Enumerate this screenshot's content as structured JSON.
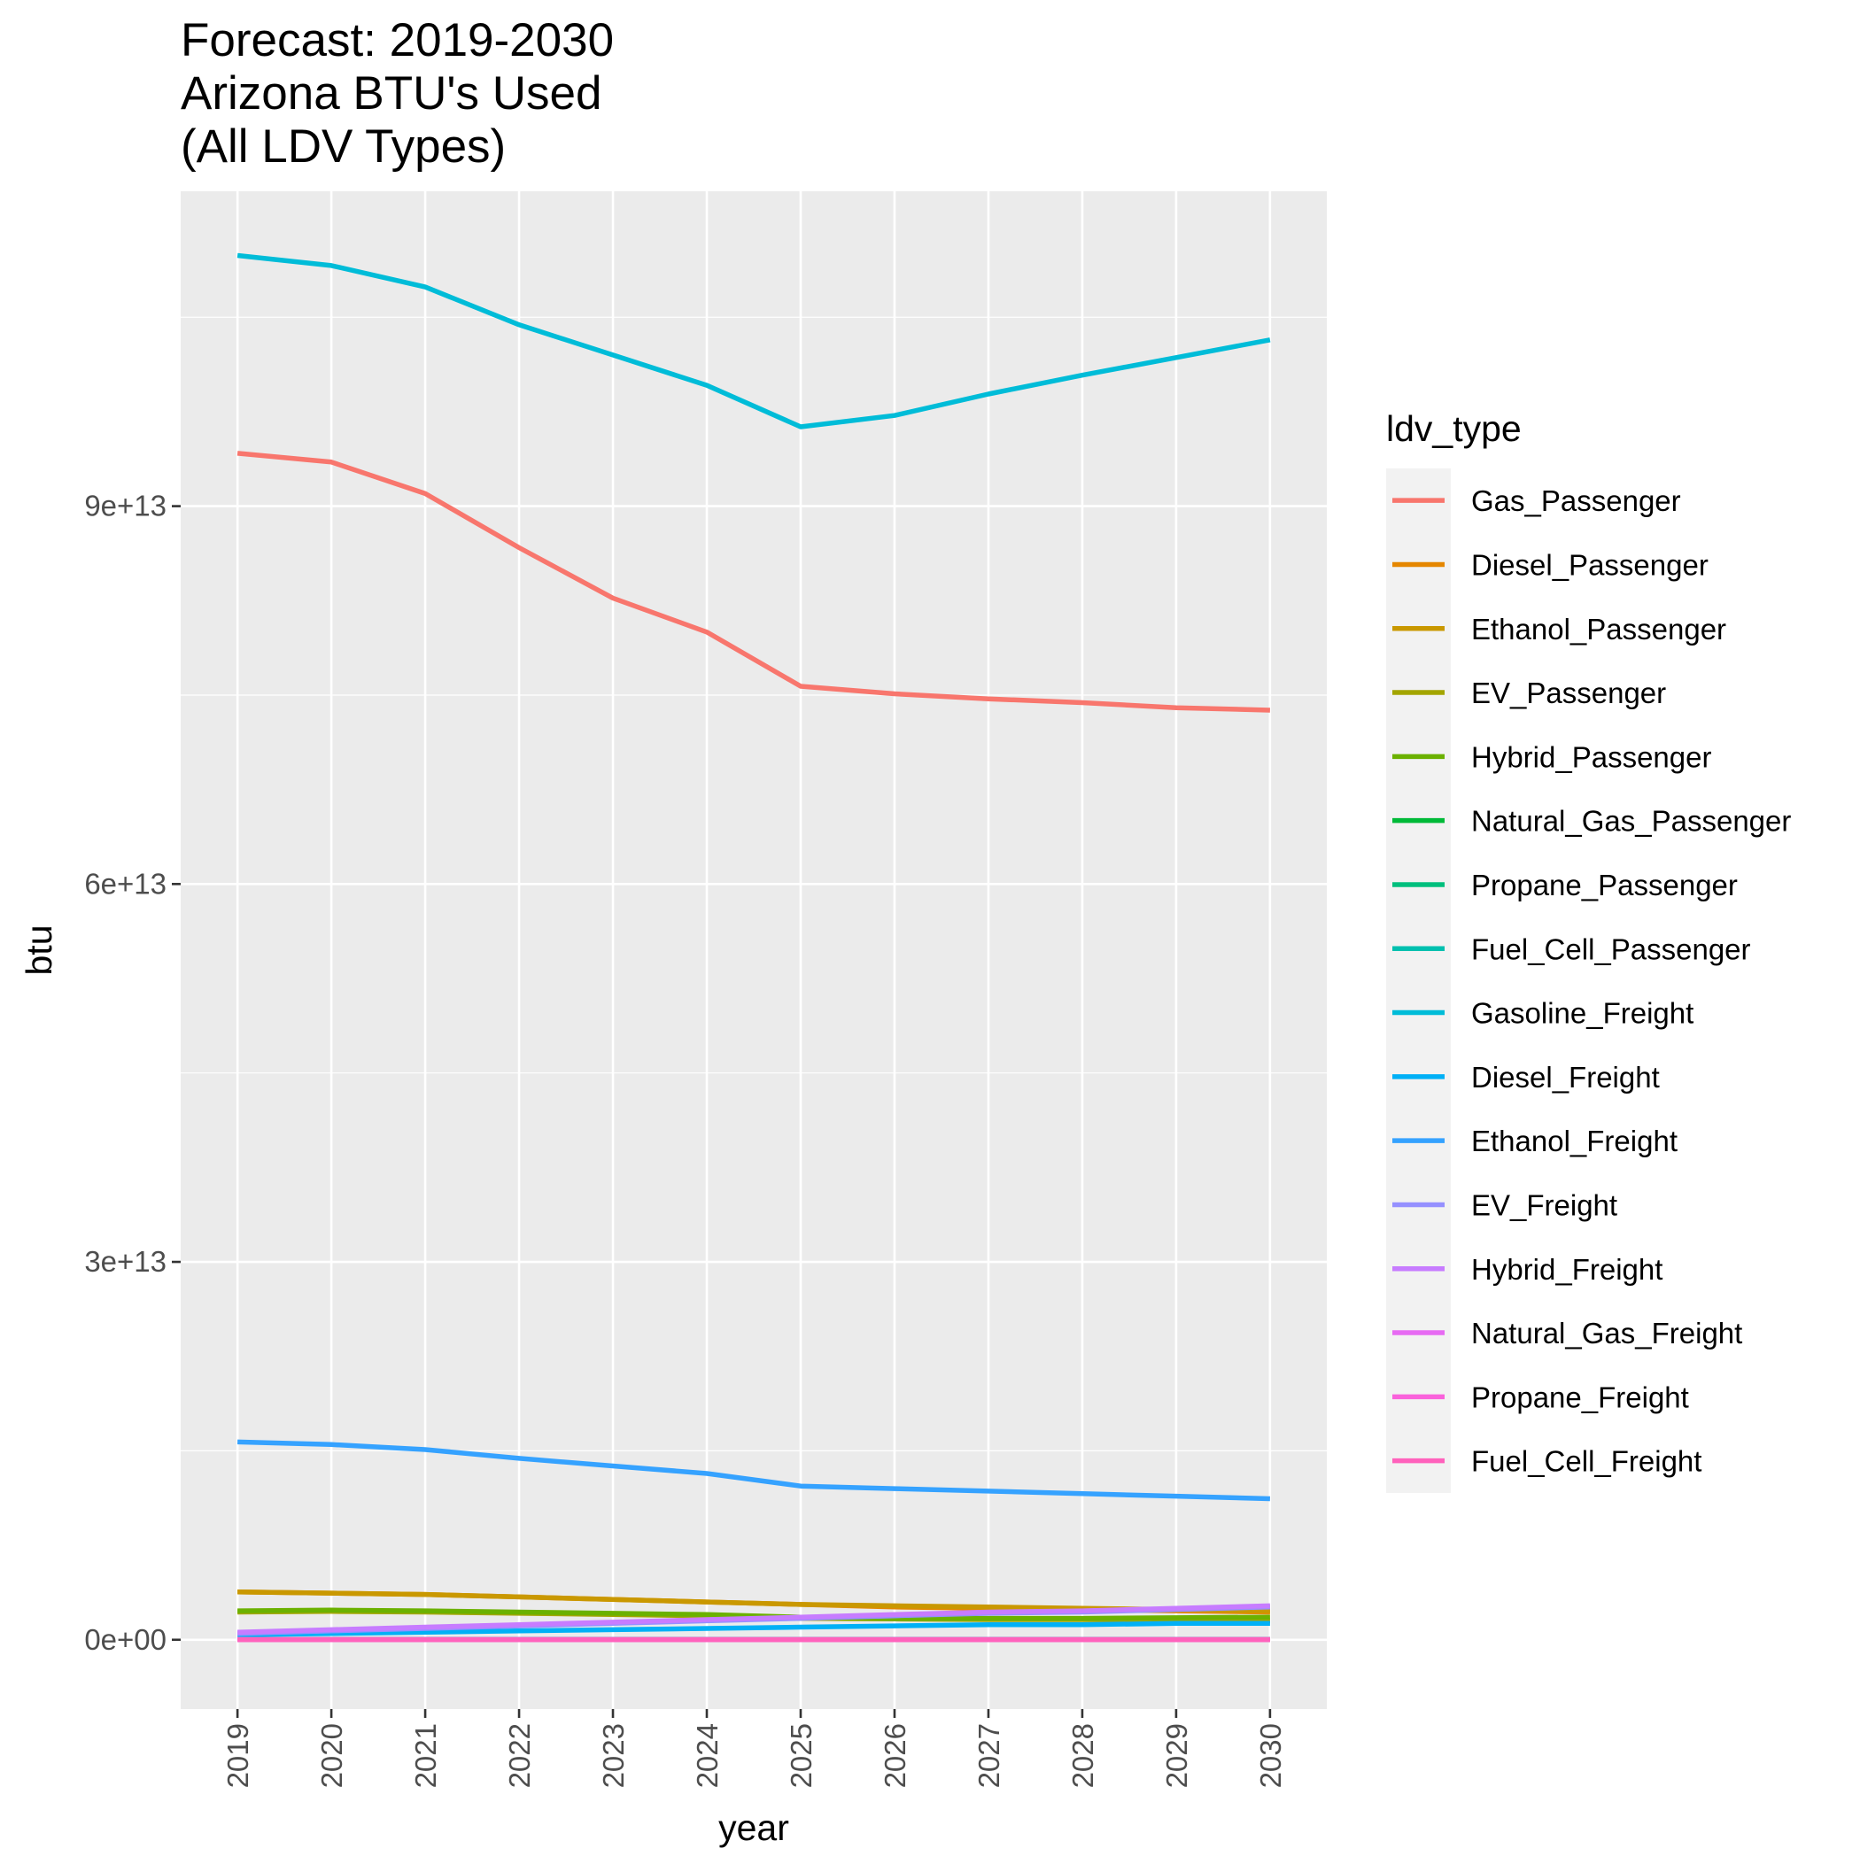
{
  "chart_data": {
    "type": "line",
    "title_lines": [
      "Forecast: 2019-2030",
      "Arizona BTU's Used",
      "(All LDV Types)"
    ],
    "xlabel": "year",
    "ylabel": "btu",
    "x": [
      2019,
      2020,
      2021,
      2022,
      2023,
      2024,
      2025,
      2026,
      2027,
      2028,
      2029,
      2030
    ],
    "x_tick_labels": [
      "2019",
      "2020",
      "2021",
      "2022",
      "2023",
      "2024",
      "2025",
      "2026",
      "2027",
      "2028",
      "2029",
      "2030"
    ],
    "y_ticks": [
      0,
      30000000000000,
      60000000000000,
      90000000000000
    ],
    "y_tick_labels": [
      "0e+00",
      "3e+13",
      "6e+13",
      "9e+13"
    ],
    "ylim": [
      -5500000000000,
      115000000000000
    ],
    "grid": true,
    "legend_title": "ldv_type",
    "legend_position": "right",
    "series": [
      {
        "name": "Gas_Passenger",
        "color": "#F8766D",
        "values": [
          94200000000000,
          93500000000000,
          91000000000000,
          86700000000000,
          82700000000000,
          80000000000000,
          75700000000000,
          75100000000000,
          74700000000000,
          74400000000000,
          74000000000000,
          73800000000000
        ]
      },
      {
        "name": "Diesel_Passenger",
        "color": "#E58700",
        "values": [
          3800000000000,
          3700000000000,
          3600000000000,
          3400000000000,
          3200000000000,
          3000000000000,
          2800000000000,
          2600000000000,
          2500000000000,
          2400000000000,
          2300000000000,
          2200000000000
        ]
      },
      {
        "name": "Ethanol_Passenger",
        "color": "#C99800",
        "values": [
          3800000000000,
          3700000000000,
          3600000000000,
          3400000000000,
          3200000000000,
          3000000000000,
          2800000000000,
          2700000000000,
          2600000000000,
          2500000000000,
          2400000000000,
          2300000000000
        ]
      },
      {
        "name": "EV_Passenger",
        "color": "#A3A500",
        "values": [
          2200000000000,
          2250000000000,
          2200000000000,
          2100000000000,
          2000000000000,
          1900000000000,
          1700000000000,
          1650000000000,
          1600000000000,
          1600000000000,
          1550000000000,
          1500000000000
        ]
      },
      {
        "name": "Hybrid_Passenger",
        "color": "#6BB100",
        "values": [
          2300000000000,
          2350000000000,
          2300000000000,
          2200000000000,
          2100000000000,
          2000000000000,
          1800000000000,
          1700000000000,
          1700000000000,
          1700000000000,
          1750000000000,
          1800000000000
        ]
      },
      {
        "name": "Natural_Gas_Passenger",
        "color": "#00BA38",
        "values": [
          30000000000,
          30000000000,
          30000000000,
          30000000000,
          30000000000,
          30000000000,
          30000000000,
          30000000000,
          30000000000,
          30000000000,
          30000000000,
          30000000000
        ]
      },
      {
        "name": "Propane_Passenger",
        "color": "#00BF7D",
        "values": [
          30000000000,
          30000000000,
          30000000000,
          30000000000,
          30000000000,
          30000000000,
          30000000000,
          30000000000,
          30000000000,
          30000000000,
          30000000000,
          30000000000
        ]
      },
      {
        "name": "Fuel_Cell_Passenger",
        "color": "#00C0AF",
        "values": [
          20000000000,
          20000000000,
          20000000000,
          20000000000,
          20000000000,
          20000000000,
          20000000000,
          20000000000,
          20000000000,
          20000000000,
          20000000000,
          20000000000
        ]
      },
      {
        "name": "Gasoline_Freight",
        "color": "#00BCD8",
        "values": [
          109900000000000,
          109100000000000,
          107400000000000,
          104400000000000,
          102000000000000,
          99600000000000,
          96300000000000,
          97200000000000,
          98900000000000,
          100400000000000,
          101800000000000,
          103200000000000
        ]
      },
      {
        "name": "Diesel_Freight",
        "color": "#00B0F6",
        "values": [
          400000000000,
          500000000000,
          600000000000,
          700000000000,
          800000000000,
          900000000000,
          1000000000000,
          1100000000000,
          1200000000000,
          1200000000000,
          1300000000000,
          1300000000000
        ]
      },
      {
        "name": "Ethanol_Freight",
        "color": "#35A2FF",
        "values": [
          15700000000000,
          15500000000000,
          15100000000000,
          14400000000000,
          13800000000000,
          13200000000000,
          12200000000000,
          12000000000000,
          11800000000000,
          11600000000000,
          11400000000000,
          11200000000000
        ]
      },
      {
        "name": "EV_Freight",
        "color": "#9590FF",
        "values": [
          500000000000,
          700000000000,
          900000000000,
          1100000000000,
          1300000000000,
          1500000000000,
          1700000000000,
          1900000000000,
          2100000000000,
          2200000000000,
          2400000000000,
          2600000000000
        ]
      },
      {
        "name": "Hybrid_Freight",
        "color": "#C77CFF",
        "values": [
          600000000000,
          800000000000,
          1000000000000,
          1200000000000,
          1400000000000,
          1600000000000,
          1800000000000,
          2000000000000,
          2200000000000,
          2300000000000,
          2500000000000,
          2700000000000
        ]
      },
      {
        "name": "Natural_Gas_Freight",
        "color": "#E76BF3",
        "values": [
          20000000000,
          20000000000,
          20000000000,
          20000000000,
          20000000000,
          20000000000,
          20000000000,
          20000000000,
          20000000000,
          20000000000,
          20000000000,
          20000000000
        ]
      },
      {
        "name": "Propane_Freight",
        "color": "#FA62DB",
        "values": [
          15000000000,
          15000000000,
          15000000000,
          15000000000,
          15000000000,
          15000000000,
          15000000000,
          15000000000,
          15000000000,
          15000000000,
          15000000000,
          15000000000
        ]
      },
      {
        "name": "Fuel_Cell_Freight",
        "color": "#FF62BC",
        "values": [
          10000000000,
          10000000000,
          10000000000,
          10000000000,
          10000000000,
          10000000000,
          10000000000,
          10000000000,
          10000000000,
          10000000000,
          10000000000,
          10000000000
        ]
      }
    ]
  }
}
